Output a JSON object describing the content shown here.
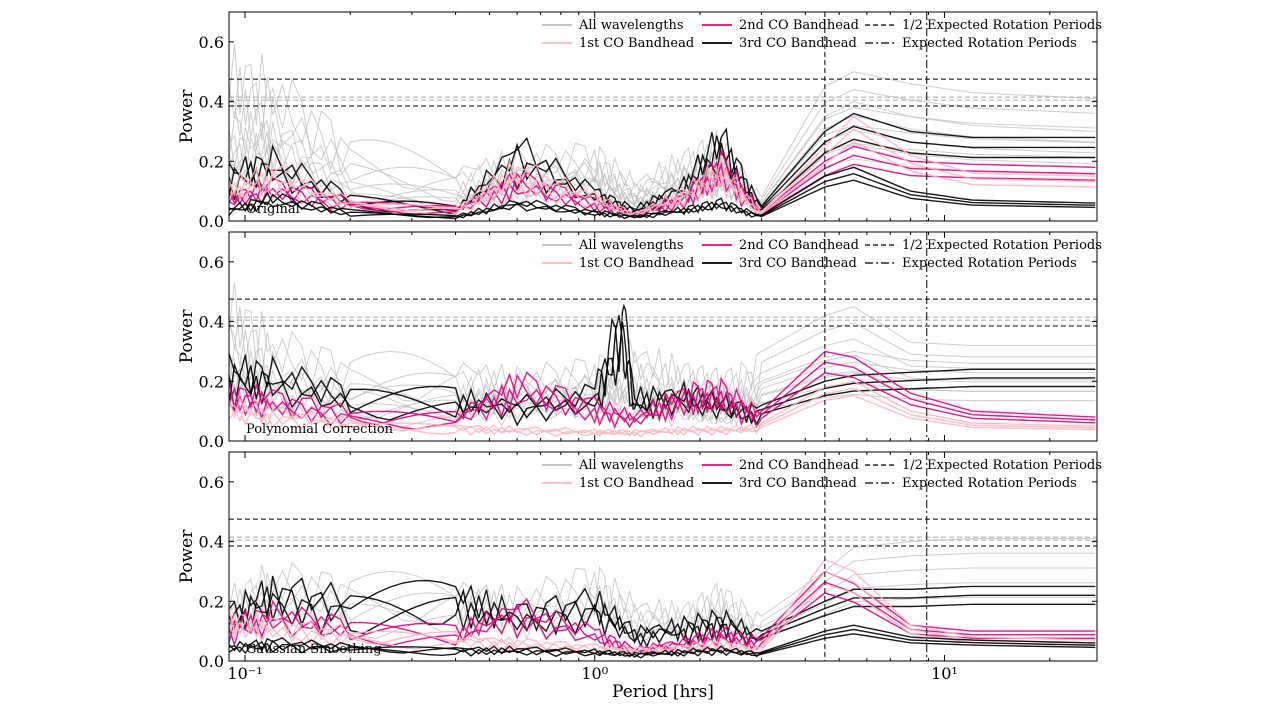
{
  "chart_data": {
    "type": "line",
    "xlabel": "Period [hrs]",
    "x_scale": "log",
    "xlim": [
      0.09,
      27.3
    ],
    "x_ticks": [
      {
        "value": 0.1,
        "label": "10⁻¹"
      },
      {
        "value": 1,
        "label": "10⁰"
      },
      {
        "value": 10,
        "label": "10¹"
      }
    ],
    "ylabel": "Power",
    "ylim": [
      0.0,
      0.7
    ],
    "y_ticks": [
      "0.0",
      "0.2",
      "0.4",
      "0.6"
    ],
    "legend_placement": "top-right",
    "legend": [
      {
        "label": "All wavelengths",
        "color": "#bdbdbd",
        "style": "solid"
      },
      {
        "label": "1st CO Bandhead",
        "color": "#ffb6c1",
        "style": "solid"
      },
      {
        "label": "2nd CO Bandhead",
        "color": "#e6007e",
        "style": "solid"
      },
      {
        "label": "3rd CO Bandhead",
        "color": "#000000",
        "style": "solid"
      },
      {
        "label": "1/2 Expected Rotation Periods",
        "color": "#000000",
        "style": "dashed"
      },
      {
        "label": "Expected Rotation Periods",
        "color": "#000000",
        "style": "dashdot"
      }
    ],
    "reference_lines": {
      "vertical_dashed_x": 4.55,
      "vertical_dashdot_x": 8.9,
      "horizontal_dashed_y": [
        0.475,
        0.385
      ],
      "horizontal_gray_dashed_y": [
        0.415,
        0.405
      ]
    },
    "colors": {
      "all": "#bdbdbd",
      "first": "#ffb6c1",
      "second": "#e6007e",
      "third": "#000000"
    },
    "panels": [
      {
        "label": "Original",
        "series": [
          {
            "group": "all",
            "x": [
              0.09,
              0.12,
              0.2,
              0.4,
              0.6,
              1.0,
              1.3,
              1.8,
              2.3,
              3.0,
              4.55,
              5.5,
              8,
              12,
              27
            ],
            "y": [
              0.6,
              0.55,
              0.3,
              0.2,
              0.25,
              0.28,
              0.15,
              0.25,
              0.32,
              0.08,
              0.45,
              0.5,
              0.46,
              0.43,
              0.41
            ]
          },
          {
            "group": "all",
            "x": [
              0.09,
              0.12,
              0.2,
              0.4,
              0.6,
              1.0,
              1.3,
              1.8,
              2.3,
              3.0,
              4.55,
              5.5,
              8,
              12,
              27
            ],
            "y": [
              0.3,
              0.35,
              0.15,
              0.1,
              0.18,
              0.2,
              0.1,
              0.18,
              0.25,
              0.06,
              0.35,
              0.4,
              0.35,
              0.32,
              0.3
            ]
          },
          {
            "group": "third",
            "x": [
              0.09,
              0.12,
              0.2,
              0.4,
              0.6,
              1.0,
              1.3,
              1.8,
              2.3,
              3.0,
              4.55,
              5.5,
              8,
              12,
              27
            ],
            "y": [
              0.2,
              0.25,
              0.1,
              0.05,
              0.3,
              0.12,
              0.05,
              0.15,
              0.35,
              0.05,
              0.3,
              0.36,
              0.3,
              0.28,
              0.28
            ]
          },
          {
            "group": "second",
            "x": [
              0.09,
              0.12,
              0.2,
              0.4,
              0.6,
              1.0,
              1.3,
              1.8,
              2.3,
              3.0,
              4.55,
              5.5,
              8,
              12,
              27
            ],
            "y": [
              0.1,
              0.15,
              0.08,
              0.05,
              0.18,
              0.08,
              0.03,
              0.1,
              0.25,
              0.03,
              0.2,
              0.25,
              0.2,
              0.19,
              0.18
            ]
          },
          {
            "group": "first",
            "x": [
              0.09,
              0.12,
              0.2,
              0.4,
              0.6,
              1.0,
              1.3,
              1.8,
              2.3,
              3.0,
              4.55,
              5.5,
              8,
              12,
              27
            ],
            "y": [
              0.15,
              0.2,
              0.08,
              0.05,
              0.22,
              0.1,
              0.03,
              0.12,
              0.22,
              0.03,
              0.25,
              0.35,
              0.22,
              0.16,
              0.15
            ]
          },
          {
            "group": "third",
            "x": [
              0.09,
              0.12,
              0.2,
              0.4,
              0.6,
              1.0,
              1.3,
              1.8,
              2.3,
              3.0,
              4.55,
              5.5,
              8,
              12,
              27
            ],
            "y": [
              0.05,
              0.1,
              0.04,
              0.02,
              0.08,
              0.04,
              0.02,
              0.05,
              0.08,
              0.02,
              0.15,
              0.18,
              0.1,
              0.07,
              0.06
            ]
          }
        ]
      },
      {
        "label": "Polynomial Correction",
        "series": [
          {
            "group": "all",
            "x": [
              0.09,
              0.12,
              0.2,
              0.4,
              0.6,
              1.0,
              1.3,
              1.8,
              2.3,
              3.0,
              4.55,
              5.5,
              8,
              12,
              27
            ],
            "y": [
              0.55,
              0.4,
              0.3,
              0.3,
              0.25,
              0.3,
              0.35,
              0.28,
              0.25,
              0.3,
              0.42,
              0.45,
              0.33,
              0.32,
              0.32
            ]
          },
          {
            "group": "all",
            "x": [
              0.09,
              0.12,
              0.2,
              0.4,
              0.6,
              1.0,
              1.3,
              1.8,
              2.3,
              3.0,
              4.55,
              5.5,
              8,
              12,
              27
            ],
            "y": [
              0.3,
              0.25,
              0.2,
              0.18,
              0.2,
              0.22,
              0.2,
              0.2,
              0.15,
              0.2,
              0.28,
              0.3,
              0.27,
              0.26,
              0.26
            ]
          },
          {
            "group": "third",
            "x": [
              0.09,
              0.12,
              0.2,
              0.4,
              0.6,
              1.0,
              1.2,
              1.3,
              1.8,
              2.3,
              3.0,
              4.55,
              5.5,
              8,
              12,
              27
            ],
            "y": [
              0.3,
              0.28,
              0.2,
              0.18,
              0.15,
              0.2,
              0.53,
              0.18,
              0.2,
              0.16,
              0.12,
              0.2,
              0.22,
              0.23,
              0.24,
              0.24
            ]
          },
          {
            "group": "second",
            "x": [
              0.09,
              0.12,
              0.2,
              0.4,
              0.6,
              1.0,
              1.3,
              1.8,
              2.3,
              3.0,
              4.55,
              5.5,
              8,
              12,
              27
            ],
            "y": [
              0.2,
              0.18,
              0.12,
              0.1,
              0.25,
              0.15,
              0.1,
              0.2,
              0.22,
              0.1,
              0.3,
              0.28,
              0.16,
              0.1,
              0.08
            ]
          },
          {
            "group": "first",
            "x": [
              0.09,
              0.12,
              0.2,
              0.4,
              0.6,
              1.0,
              1.3,
              1.8,
              2.3,
              3.0,
              4.55,
              5.5,
              8,
              12,
              27
            ],
            "y": [
              0.15,
              0.12,
              0.08,
              0.06,
              0.05,
              0.04,
              0.04,
              0.05,
              0.05,
              0.06,
              0.18,
              0.2,
              0.1,
              0.06,
              0.05
            ]
          }
        ]
      },
      {
        "label": "Gaussian Smoothing",
        "series": [
          {
            "group": "all",
            "x": [
              0.09,
              0.12,
              0.2,
              0.4,
              0.6,
              1.0,
              1.3,
              1.8,
              2.3,
              3.0,
              4.55,
              5.5,
              8,
              12,
              27
            ],
            "y": [
              0.25,
              0.35,
              0.3,
              0.3,
              0.25,
              0.35,
              0.22,
              0.2,
              0.28,
              0.15,
              0.3,
              0.38,
              0.4,
              0.41,
              0.41
            ]
          },
          {
            "group": "third",
            "x": [
              0.09,
              0.12,
              0.2,
              0.4,
              0.6,
              1.0,
              1.3,
              1.8,
              2.3,
              3.0,
              4.55,
              5.5,
              8,
              12,
              27
            ],
            "y": [
              0.2,
              0.3,
              0.25,
              0.28,
              0.2,
              0.25,
              0.12,
              0.15,
              0.18,
              0.1,
              0.2,
              0.24,
              0.24,
              0.25,
              0.25
            ]
          },
          {
            "group": "second",
            "x": [
              0.09,
              0.12,
              0.2,
              0.4,
              0.6,
              1.0,
              1.3,
              1.8,
              2.3,
              3.0,
              4.55,
              5.5,
              8,
              12,
              27
            ],
            "y": [
              0.15,
              0.2,
              0.15,
              0.12,
              0.22,
              0.12,
              0.05,
              0.08,
              0.12,
              0.08,
              0.3,
              0.26,
              0.12,
              0.1,
              0.1
            ]
          },
          {
            "group": "first",
            "x": [
              0.09,
              0.12,
              0.2,
              0.4,
              0.6,
              1.0,
              1.3,
              1.8,
              2.3,
              3.0,
              4.55,
              5.5,
              8,
              12,
              27
            ],
            "y": [
              0.18,
              0.15,
              0.12,
              0.1,
              0.08,
              0.06,
              0.05,
              0.06,
              0.08,
              0.05,
              0.34,
              0.3,
              0.12,
              0.08,
              0.07
            ]
          },
          {
            "group": "third",
            "x": [
              0.09,
              0.12,
              0.2,
              0.4,
              0.6,
              1.0,
              1.3,
              1.8,
              2.3,
              3.0,
              4.55,
              5.5,
              8,
              12,
              27
            ],
            "y": [
              0.06,
              0.08,
              0.06,
              0.05,
              0.05,
              0.04,
              0.03,
              0.04,
              0.05,
              0.03,
              0.1,
              0.12,
              0.08,
              0.07,
              0.06
            ]
          }
        ]
      }
    ]
  }
}
